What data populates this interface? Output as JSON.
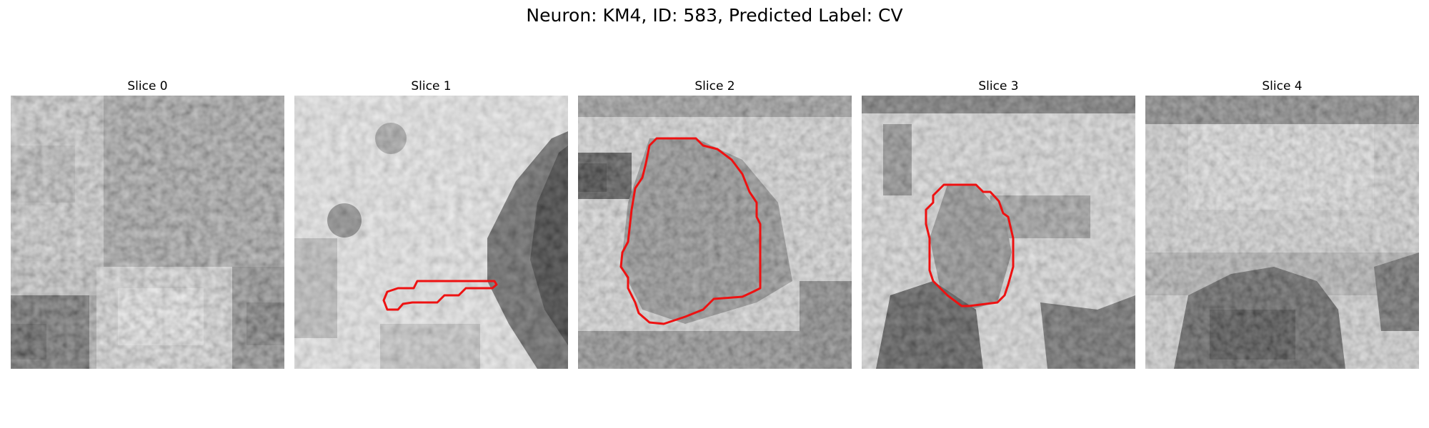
{
  "figure": {
    "title": "Neuron: KM4, ID: 583, Predicted Label: CV"
  },
  "slices": [
    {
      "title": "Slice 0",
      "has_contour": false
    },
    {
      "title": "Slice 1",
      "has_contour": true
    },
    {
      "title": "Slice 2",
      "has_contour": true
    },
    {
      "title": "Slice 3",
      "has_contour": true
    },
    {
      "title": "Slice 4",
      "has_contour": false
    }
  ],
  "colors": {
    "contour": "#ee1111",
    "background": "#ffffff"
  }
}
